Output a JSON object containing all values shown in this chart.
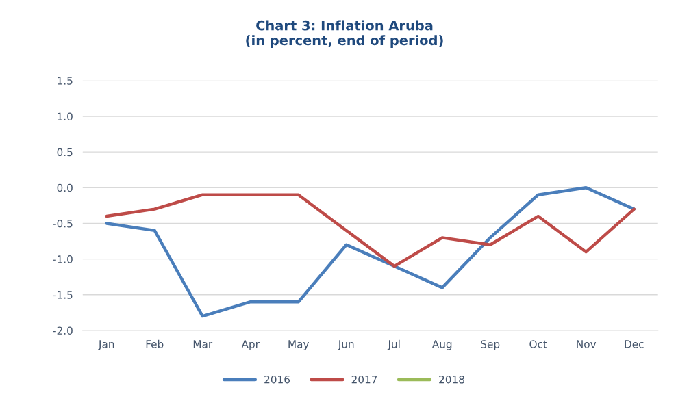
{
  "chart_data": {
    "type": "line",
    "title": "Chart 3: Inflation Aruba\n(in percent, end of period)",
    "categories": [
      "Jan",
      "Feb",
      "Mar",
      "Apr",
      "May",
      "Jun",
      "Jul",
      "Aug",
      "Sep",
      "Oct",
      "Nov",
      "Dec"
    ],
    "series": [
      {
        "name": "2016",
        "color": "#4a7ebb",
        "values": [
          -0.5,
          -0.6,
          -1.8,
          -1.6,
          -1.6,
          -0.8,
          -1.1,
          -1.4,
          -0.7,
          -0.1,
          0.0,
          -0.3
        ]
      },
      {
        "name": "2017",
        "color": "#be4b48",
        "values": [
          -0.4,
          -0.3,
          -0.1,
          -0.1,
          -0.1,
          -0.6,
          -1.1,
          -0.7,
          -0.8,
          -0.4,
          -0.9,
          -0.3
        ]
      },
      {
        "name": "2018",
        "color": "#9bbb59",
        "values": [
          null,
          null,
          null,
          null,
          null,
          null,
          null,
          null,
          null,
          null,
          null,
          null
        ]
      }
    ],
    "ylim": [
      -2.0,
      1.5
    ],
    "yticks": [
      {
        "value": -2.0,
        "label": "-2.0"
      },
      {
        "value": -1.5,
        "label": "-1.5"
      },
      {
        "value": -1.0,
        "label": "-1.0"
      },
      {
        "value": -0.5,
        "label": "-0.5"
      },
      {
        "value": 0.0,
        "label": "0.0"
      },
      {
        "value": 0.5,
        "label": "0.5"
      },
      {
        "value": 1.0,
        "label": "1.0"
      },
      {
        "value": 1.5,
        "label": "1.5"
      }
    ],
    "grid": "y",
    "legend": "bottom",
    "marker": "none",
    "line_style": "solid"
  }
}
